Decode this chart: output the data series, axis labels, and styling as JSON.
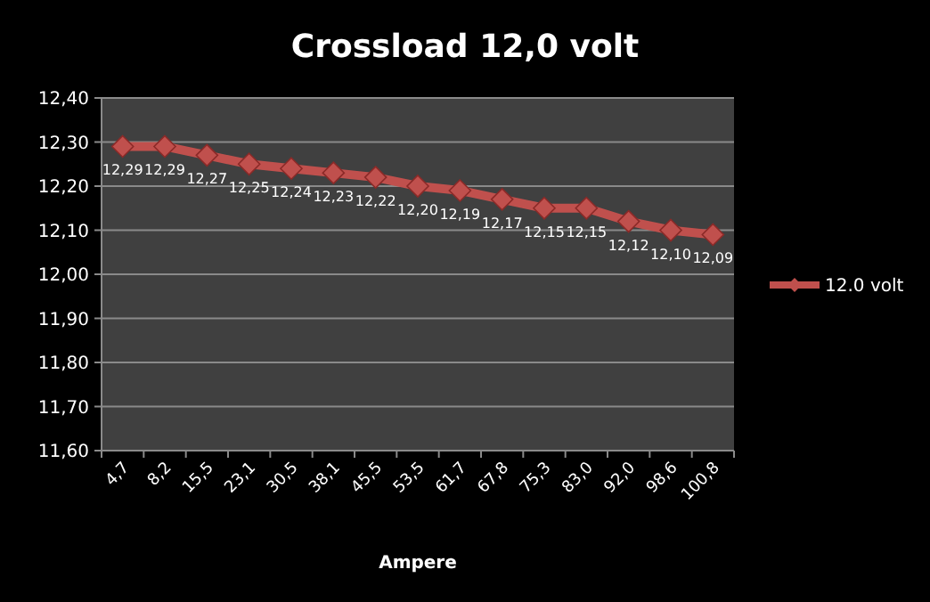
{
  "chart_data": {
    "type": "line",
    "title": "Crossload 12,0 volt",
    "xlabel": "Ampere",
    "categories": [
      "4,7",
      "8,2",
      "15,5",
      "23,1",
      "30,5",
      "38,1",
      "45,5",
      "53,5",
      "61,7",
      "67,8",
      "75,3",
      "83,0",
      "92,0",
      "98,6",
      "100,8"
    ],
    "series": [
      {
        "name": "12.0 volt",
        "color": "#c0504d",
        "values": [
          12.29,
          12.29,
          12.27,
          12.25,
          12.24,
          12.23,
          12.22,
          12.2,
          12.19,
          12.17,
          12.15,
          12.15,
          12.12,
          12.1,
          12.09
        ],
        "value_labels": [
          "12,29",
          "12,29",
          "12,27",
          "12,25",
          "12,24",
          "12,23",
          "12,22",
          "12,20",
          "12,19",
          "12,17",
          "12,15",
          "12,15",
          "12,12",
          "12,10",
          "12,09"
        ]
      }
    ],
    "ylim": [
      11.6,
      12.4
    ],
    "yticks": [
      {
        "value": 11.6,
        "label": "11,60"
      },
      {
        "value": 11.7,
        "label": "11,70"
      },
      {
        "value": 11.8,
        "label": "11,80"
      },
      {
        "value": 11.9,
        "label": "11,90"
      },
      {
        "value": 12.0,
        "label": "12,00"
      },
      {
        "value": 12.1,
        "label": "12,10"
      },
      {
        "value": 12.2,
        "label": "12,20"
      },
      {
        "value": 12.3,
        "label": "12,30"
      },
      {
        "value": 12.4,
        "label": "12,40"
      }
    ],
    "grid": "y",
    "legend": "right",
    "marker": "diamond",
    "line_style": "solid"
  }
}
